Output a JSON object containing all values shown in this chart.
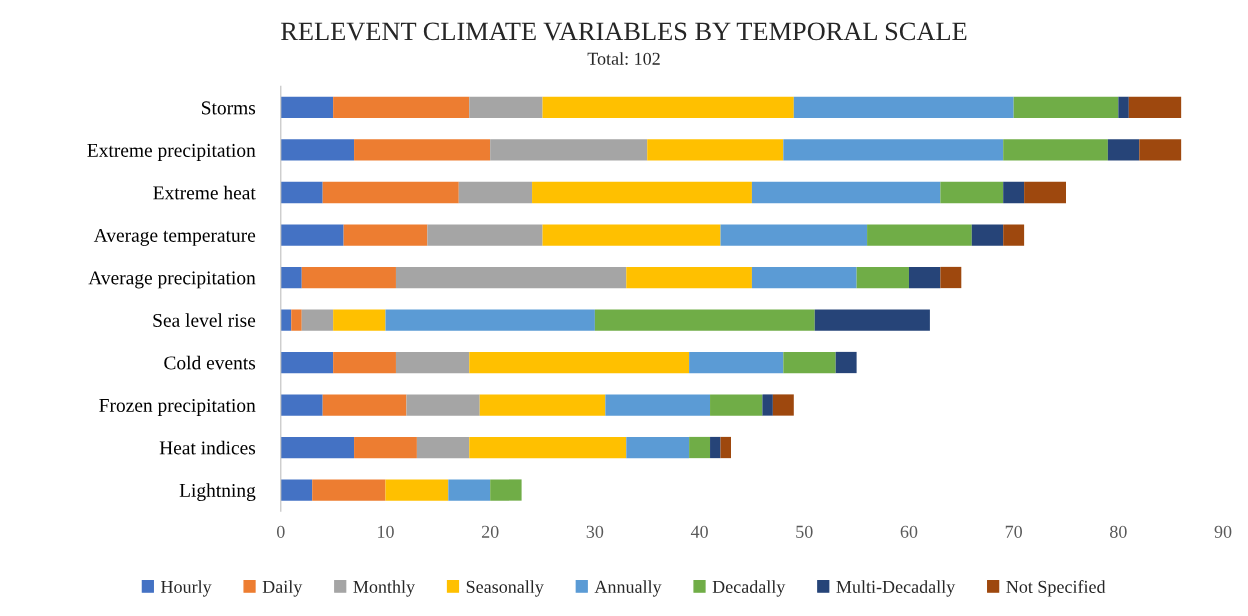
{
  "chart_data": {
    "type": "bar",
    "orientation": "horizontal",
    "stacked": true,
    "title": "RELEVENT CLIMATE VARIABLES BY TEMPORAL SCALE",
    "subtitle": "Total: 102",
    "categories": [
      "Storms",
      "Extreme precipitation",
      "Extreme heat",
      "Average temperature",
      "Average precipitation",
      "Sea level rise",
      "Cold events",
      "Frozen precipitation",
      "Heat indices",
      "Lightning"
    ],
    "series": [
      {
        "name": "Hourly",
        "color": "#4472c4",
        "values": [
          5,
          7,
          4,
          6,
          2,
          1,
          5,
          4,
          7,
          3
        ]
      },
      {
        "name": "Daily",
        "color": "#ed7d31",
        "values": [
          13,
          13,
          13,
          8,
          9,
          1,
          6,
          8,
          6,
          7
        ]
      },
      {
        "name": "Monthly",
        "color": "#a5a5a5",
        "values": [
          7,
          15,
          7,
          11,
          22,
          3,
          7,
          7,
          5,
          0
        ]
      },
      {
        "name": "Seasonally",
        "color": "#ffc000",
        "values": [
          24,
          13,
          21,
          17,
          12,
          5,
          21,
          12,
          15,
          6
        ]
      },
      {
        "name": "Annually",
        "color": "#5b9bd5",
        "values": [
          21,
          21,
          18,
          14,
          10,
          20,
          9,
          10,
          6,
          4
        ]
      },
      {
        "name": "Decadally",
        "color": "#70ad47",
        "values": [
          10,
          10,
          6,
          10,
          5,
          21,
          5,
          5,
          2,
          3
        ]
      },
      {
        "name": "Multi-Decadally",
        "color": "#264478",
        "values": [
          1,
          3,
          2,
          3,
          3,
          11,
          2,
          1,
          1,
          0
        ]
      },
      {
        "name": "Not Specified",
        "color": "#9e480e",
        "values": [
          5,
          4,
          4,
          2,
          2,
          0,
          0,
          2,
          1,
          0
        ]
      }
    ],
    "xlim": [
      0,
      90
    ],
    "xticks": [
      0,
      10,
      20,
      30,
      40,
      50,
      60,
      70,
      80,
      90
    ],
    "grid": false,
    "legend": "bottom"
  }
}
